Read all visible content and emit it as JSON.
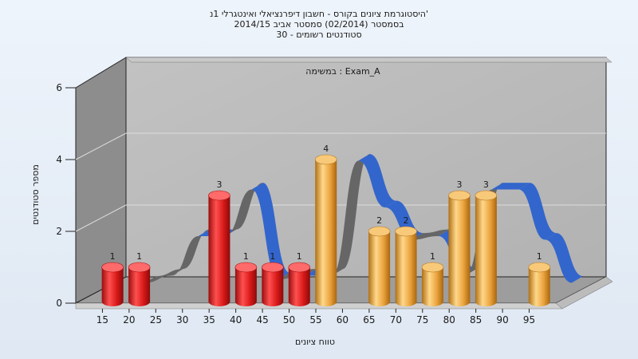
{
  "chart_data": {
    "type": "bar",
    "title_lines": [
      "היסטוגרמת ציונים בקורס - חשבון דיפרנציאלי ואינטגרלי 1נ'",
      "בסמסטר  (02/2014)  סמסטר אביב 2014/15",
      "סטודנטים רשומים - 30"
    ],
    "annotation": "במשימה : Exam_A",
    "xlabel": "טווח ציונים",
    "ylabel": "מספר סטודנטים",
    "categories": [
      "15",
      "20",
      "25",
      "30",
      "35",
      "40",
      "45",
      "50",
      "55",
      "60",
      "65",
      "70",
      "75",
      "80",
      "85",
      "90",
      "95"
    ],
    "ylim": [
      0,
      6
    ],
    "yticks": [
      "0",
      "2",
      "4",
      "6"
    ],
    "bars": [
      {
        "x": 17.5,
        "value": 1,
        "label": "1",
        "color": "#e02020"
      },
      {
        "x": 22.5,
        "value": 1,
        "label": "1",
        "color": "#e02020"
      },
      {
        "x": 37.5,
        "value": 3,
        "label": "3",
        "color": "#e02020"
      },
      {
        "x": 42.5,
        "value": 1,
        "label": "1",
        "color": "#e02020"
      },
      {
        "x": 47.5,
        "value": 1,
        "label": "1",
        "color": "#e02020"
      },
      {
        "x": 52.5,
        "value": 1,
        "label": "1",
        "color": "#e02020"
      },
      {
        "x": 57.5,
        "value": 4,
        "label": "4",
        "color": "#e9a43c"
      },
      {
        "x": 67.5,
        "value": 2,
        "label": "2",
        "color": "#e9a43c"
      },
      {
        "x": 72.5,
        "value": 2,
        "label": "2",
        "color": "#e9a43c"
      },
      {
        "x": 77.5,
        "value": 1,
        "label": "1",
        "color": "#e9a43c"
      },
      {
        "x": 82.5,
        "value": 3,
        "label": "3",
        "color": "#e9a43c"
      },
      {
        "x": 87.5,
        "value": 3,
        "label": "3",
        "color": "#e9a43c"
      },
      {
        "x": 97.5,
        "value": 1,
        "label": "1",
        "color": "#e9a43c"
      }
    ],
    "curve": {
      "x": [
        20,
        25,
        30,
        35,
        40,
        45,
        50,
        55,
        60,
        65,
        70,
        75,
        80,
        85,
        90,
        95,
        100
      ],
      "values": [
        0.3,
        0.5,
        1.6,
        1.6,
        2.9,
        0.4,
        0.5,
        0.5,
        3.7,
        2.4,
        1.5,
        1.6,
        0.5,
        2.9,
        2.9,
        1.5,
        0.3
      ],
      "colors": [
        "#3366cc",
        "#666666"
      ]
    },
    "grid": true,
    "legend": "none"
  }
}
